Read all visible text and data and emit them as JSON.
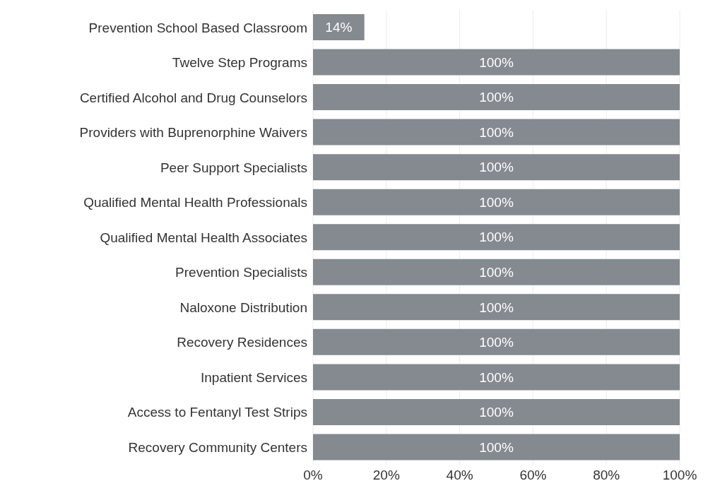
{
  "chart_data": {
    "type": "bar",
    "orientation": "horizontal",
    "categories": [
      "Prevention School Based Classroom",
      "Twelve Step Programs",
      "Certified Alcohol and Drug Counselors",
      "Providers with Buprenorphine Waivers",
      "Peer Support Specialists",
      "Qualified Mental Health Professionals",
      "Qualified Mental Health Associates",
      "Prevention Specialists",
      "Naloxone Distribution",
      "Recovery Residences",
      "Inpatient Services",
      "Access to Fentanyl Test Strips",
      "Recovery Community Centers"
    ],
    "values": [
      14,
      100,
      100,
      100,
      100,
      100,
      100,
      100,
      100,
      100,
      100,
      100,
      100
    ],
    "value_labels": [
      "14%",
      "100%",
      "100%",
      "100%",
      "100%",
      "100%",
      "100%",
      "100%",
      "100%",
      "100%",
      "100%",
      "100%",
      "100%"
    ],
    "color": "#848a90",
    "xlim": [
      0,
      100
    ],
    "xticks": [
      {
        "value": 0,
        "label": "0%"
      },
      {
        "value": 20,
        "label": "20%"
      },
      {
        "value": 40,
        "label": "40%"
      },
      {
        "value": 60,
        "label": "60%"
      },
      {
        "value": 80,
        "label": "80%"
      },
      {
        "value": 100,
        "label": "100%"
      }
    ],
    "grid": "x"
  }
}
